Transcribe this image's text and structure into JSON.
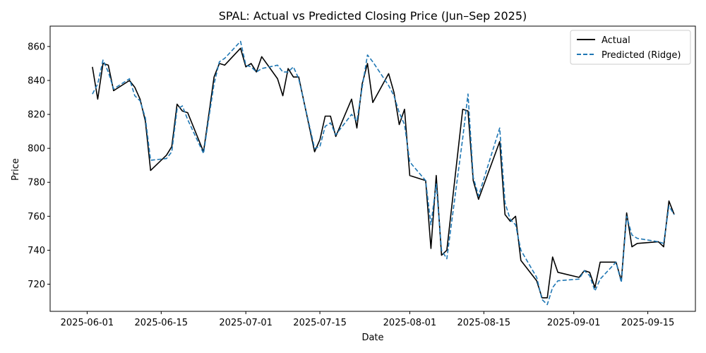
{
  "chart_data": {
    "type": "line",
    "title": "SPAL: Actual vs Predicted Closing Price (Jun–Sep 2025)",
    "xlabel": "Date",
    "ylabel": "Price",
    "xlim": [
      "2025-05-25",
      "2025-09-24"
    ],
    "ylim": [
      704,
      872
    ],
    "x_ticks": [
      "2025-06-01",
      "2025-06-15",
      "2025-07-01",
      "2025-07-15",
      "2025-08-01",
      "2025-08-15",
      "2025-09-01",
      "2025-09-15"
    ],
    "y_ticks": [
      720,
      740,
      760,
      780,
      800,
      820,
      840,
      860
    ],
    "grid": false,
    "legend_position": "top-right",
    "series": [
      {
        "name": "Actual",
        "color": "#000000",
        "style": "solid",
        "points": [
          [
            "2025-06-02",
            848
          ],
          [
            "2025-06-03",
            829
          ],
          [
            "2025-06-04",
            850
          ],
          [
            "2025-06-05",
            849
          ],
          [
            "2025-06-06",
            834
          ],
          [
            "2025-06-09",
            840
          ],
          [
            "2025-06-10",
            836
          ],
          [
            "2025-06-11",
            829
          ],
          [
            "2025-06-12",
            816
          ],
          [
            "2025-06-13",
            787
          ],
          [
            "2025-06-16",
            796
          ],
          [
            "2025-06-17",
            801
          ],
          [
            "2025-06-18",
            826
          ],
          [
            "2025-06-19",
            822
          ],
          [
            "2025-06-20",
            821
          ],
          [
            "2025-06-23",
            798
          ],
          [
            "2025-06-24",
            820
          ],
          [
            "2025-06-25",
            842
          ],
          [
            "2025-06-26",
            850
          ],
          [
            "2025-06-27",
            849
          ],
          [
            "2025-06-30",
            859
          ],
          [
            "2025-07-01",
            848
          ],
          [
            "2025-07-02",
            850
          ],
          [
            "2025-07-03",
            845
          ],
          [
            "2025-07-04",
            854
          ],
          [
            "2025-07-07",
            841
          ],
          [
            "2025-07-08",
            831
          ],
          [
            "2025-07-09",
            847
          ],
          [
            "2025-07-10",
            842
          ],
          [
            "2025-07-11",
            842
          ],
          [
            "2025-07-14",
            798
          ],
          [
            "2025-07-15",
            805
          ],
          [
            "2025-07-16",
            819
          ],
          [
            "2025-07-17",
            819
          ],
          [
            "2025-07-18",
            807
          ],
          [
            "2025-07-21",
            829
          ],
          [
            "2025-07-22",
            812
          ],
          [
            "2025-07-23",
            838
          ],
          [
            "2025-07-24",
            850
          ],
          [
            "2025-07-25",
            827
          ],
          [
            "2025-07-28",
            844
          ],
          [
            "2025-07-29",
            833
          ],
          [
            "2025-07-30",
            814
          ],
          [
            "2025-07-31",
            823
          ],
          [
            "2025-08-01",
            784
          ],
          [
            "2025-08-04",
            781
          ],
          [
            "2025-08-05",
            741
          ],
          [
            "2025-08-06",
            784
          ],
          [
            "2025-08-07",
            737
          ],
          [
            "2025-08-08",
            740
          ],
          [
            "2025-08-11",
            823
          ],
          [
            "2025-08-12",
            822
          ],
          [
            "2025-08-13",
            781
          ],
          [
            "2025-08-14",
            770
          ],
          [
            "2025-08-18",
            804
          ],
          [
            "2025-08-19",
            761
          ],
          [
            "2025-08-20",
            757
          ],
          [
            "2025-08-21",
            760
          ],
          [
            "2025-08-22",
            734
          ],
          [
            "2025-08-25",
            722
          ],
          [
            "2025-08-26",
            712
          ],
          [
            "2025-08-27",
            712
          ],
          [
            "2025-08-28",
            736
          ],
          [
            "2025-08-29",
            727
          ],
          [
            "2025-09-02",
            724
          ],
          [
            "2025-09-03",
            728
          ],
          [
            "2025-09-04",
            727
          ],
          [
            "2025-09-05",
            718
          ],
          [
            "2025-09-06",
            733
          ],
          [
            "2025-09-09",
            733
          ],
          [
            "2025-09-10",
            722
          ],
          [
            "2025-09-11",
            762
          ],
          [
            "2025-09-12",
            742
          ],
          [
            "2025-09-13",
            744
          ],
          [
            "2025-09-17",
            745
          ],
          [
            "2025-09-18",
            742
          ],
          [
            "2025-09-19",
            769
          ],
          [
            "2025-09-20",
            761
          ]
        ]
      },
      {
        "name": "Predicted (Ridge)",
        "color": "#1f77b4",
        "style": "dashed",
        "points": [
          [
            "2025-06-02",
            832
          ],
          [
            "2025-06-03",
            838
          ],
          [
            "2025-06-04",
            852
          ],
          [
            "2025-06-05",
            845
          ],
          [
            "2025-06-06",
            835
          ],
          [
            "2025-06-09",
            841
          ],
          [
            "2025-06-10",
            831
          ],
          [
            "2025-06-11",
            828
          ],
          [
            "2025-06-12",
            818
          ],
          [
            "2025-06-13",
            793
          ],
          [
            "2025-06-16",
            794
          ],
          [
            "2025-06-17",
            798
          ],
          [
            "2025-06-18",
            823
          ],
          [
            "2025-06-19",
            825
          ],
          [
            "2025-06-20",
            817
          ],
          [
            "2025-06-23",
            797
          ],
          [
            "2025-06-24",
            818
          ],
          [
            "2025-06-25",
            838
          ],
          [
            "2025-06-26",
            851
          ],
          [
            "2025-06-27",
            853
          ],
          [
            "2025-06-30",
            863
          ],
          [
            "2025-07-01",
            849
          ],
          [
            "2025-07-02",
            848
          ],
          [
            "2025-07-03",
            845
          ],
          [
            "2025-07-04",
            847
          ],
          [
            "2025-07-07",
            849
          ],
          [
            "2025-07-08",
            845
          ],
          [
            "2025-07-09",
            845
          ],
          [
            "2025-07-10",
            848
          ],
          [
            "2025-07-11",
            841
          ],
          [
            "2025-07-14",
            800
          ],
          [
            "2025-07-15",
            801
          ],
          [
            "2025-07-16",
            813
          ],
          [
            "2025-07-17",
            815
          ],
          [
            "2025-07-18",
            808
          ],
          [
            "2025-07-21",
            820
          ],
          [
            "2025-07-22",
            816
          ],
          [
            "2025-07-23",
            836
          ],
          [
            "2025-07-24",
            855
          ],
          [
            "2025-07-25",
            851
          ],
          [
            "2025-07-28",
            837
          ],
          [
            "2025-07-29",
            831
          ],
          [
            "2025-07-30",
            821
          ],
          [
            "2025-07-31",
            814
          ],
          [
            "2025-08-01",
            792
          ],
          [
            "2025-08-04",
            781
          ],
          [
            "2025-08-05",
            755
          ],
          [
            "2025-08-06",
            779
          ],
          [
            "2025-08-07",
            740
          ],
          [
            "2025-08-08",
            735
          ],
          [
            "2025-08-11",
            806
          ],
          [
            "2025-08-12",
            832
          ],
          [
            "2025-08-13",
            783
          ],
          [
            "2025-08-14",
            772
          ],
          [
            "2025-08-18",
            812
          ],
          [
            "2025-08-19",
            768
          ],
          [
            "2025-08-20",
            758
          ],
          [
            "2025-08-21",
            755
          ],
          [
            "2025-08-22",
            740
          ],
          [
            "2025-08-25",
            724
          ],
          [
            "2025-08-26",
            711
          ],
          [
            "2025-08-27",
            708
          ],
          [
            "2025-08-28",
            718
          ],
          [
            "2025-08-29",
            722
          ],
          [
            "2025-09-02",
            723
          ],
          [
            "2025-09-03",
            728
          ],
          [
            "2025-09-04",
            725
          ],
          [
            "2025-09-05",
            716
          ],
          [
            "2025-09-06",
            723
          ],
          [
            "2025-09-09",
            733
          ],
          [
            "2025-09-10",
            721
          ],
          [
            "2025-09-11",
            760
          ],
          [
            "2025-09-12",
            749
          ],
          [
            "2025-09-13",
            747
          ],
          [
            "2025-09-17",
            745
          ],
          [
            "2025-09-18",
            744
          ],
          [
            "2025-09-19",
            766
          ],
          [
            "2025-09-20",
            761
          ]
        ]
      }
    ]
  }
}
